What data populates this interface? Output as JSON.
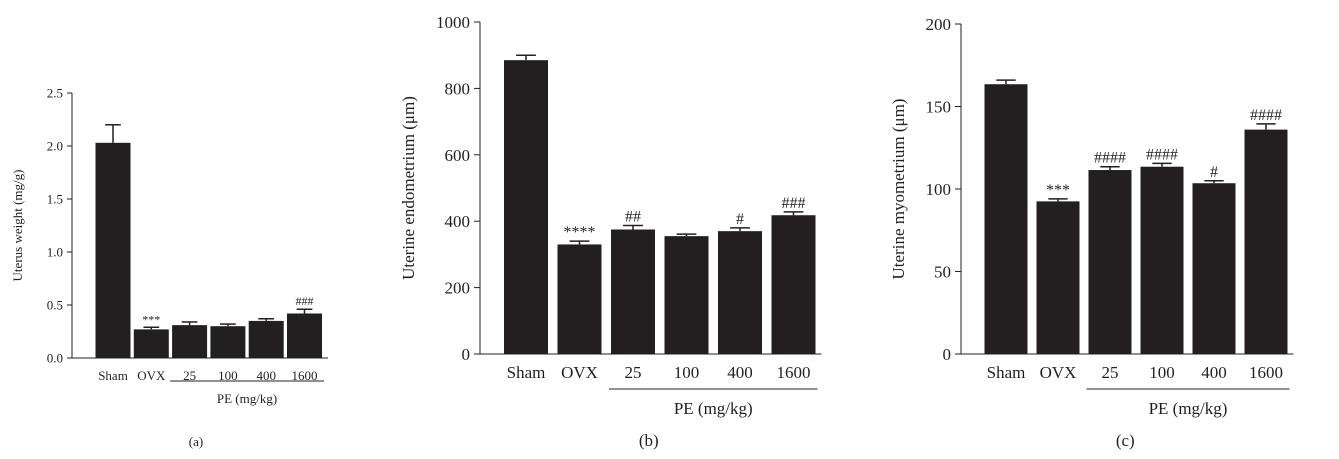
{
  "chart_data": [
    {
      "type": "bar",
      "panel_label": "(a)",
      "ylabel": "Uterus weight (mg/g)",
      "categories": [
        "Sham",
        "OVX",
        "25",
        "100",
        "400",
        "1600"
      ],
      "values": [
        2.03,
        0.27,
        0.31,
        0.3,
        0.35,
        0.42
      ],
      "errors": [
        0.17,
        0.02,
        0.03,
        0.02,
        0.02,
        0.04
      ],
      "annotations": [
        "",
        "***",
        "",
        "",
        "",
        "###"
      ],
      "yticks": [
        "0.0",
        "0.5",
        "1.0",
        "1.5",
        "2.0",
        "2.5"
      ],
      "ylim": [
        0,
        2.5
      ],
      "group_label": "PE (mg/kg)",
      "bar_color": "#231f20"
    },
    {
      "type": "bar",
      "panel_label": "(b)",
      "ylabel": "Uterine endometrium (μm)",
      "categories": [
        "Sham",
        "OVX",
        "25",
        "100",
        "400",
        "1600"
      ],
      "values": [
        885,
        330,
        375,
        355,
        370,
        418
      ],
      "errors": [
        15,
        10,
        12,
        6,
        10,
        10
      ],
      "annotations": [
        "",
        "****",
        "##",
        "",
        "#",
        "###"
      ],
      "yticks": [
        "0",
        "200",
        "400",
        "600",
        "800",
        "1000"
      ],
      "ylim": [
        0,
        1000
      ],
      "group_label": "PE (mg/kg)",
      "bar_color": "#231f20"
    },
    {
      "type": "bar",
      "panel_label": "(c)",
      "ylabel": "Uterine myometrium (μm)",
      "categories": [
        "Sham",
        "OVX",
        "25",
        "100",
        "400",
        "1600"
      ],
      "values": [
        163.5,
        92.5,
        111.5,
        113.5,
        103.5,
        136
      ],
      "errors": [
        2.5,
        1.5,
        2,
        2,
        1.5,
        3.5
      ],
      "annotations": [
        "",
        "***",
        "####",
        "####",
        "#",
        "####"
      ],
      "yticks": [
        "0",
        "50",
        "100",
        "150",
        "200"
      ],
      "ylim": [
        0,
        200
      ],
      "group_label": "PE (mg/kg)",
      "bar_color": "#231f20"
    }
  ]
}
